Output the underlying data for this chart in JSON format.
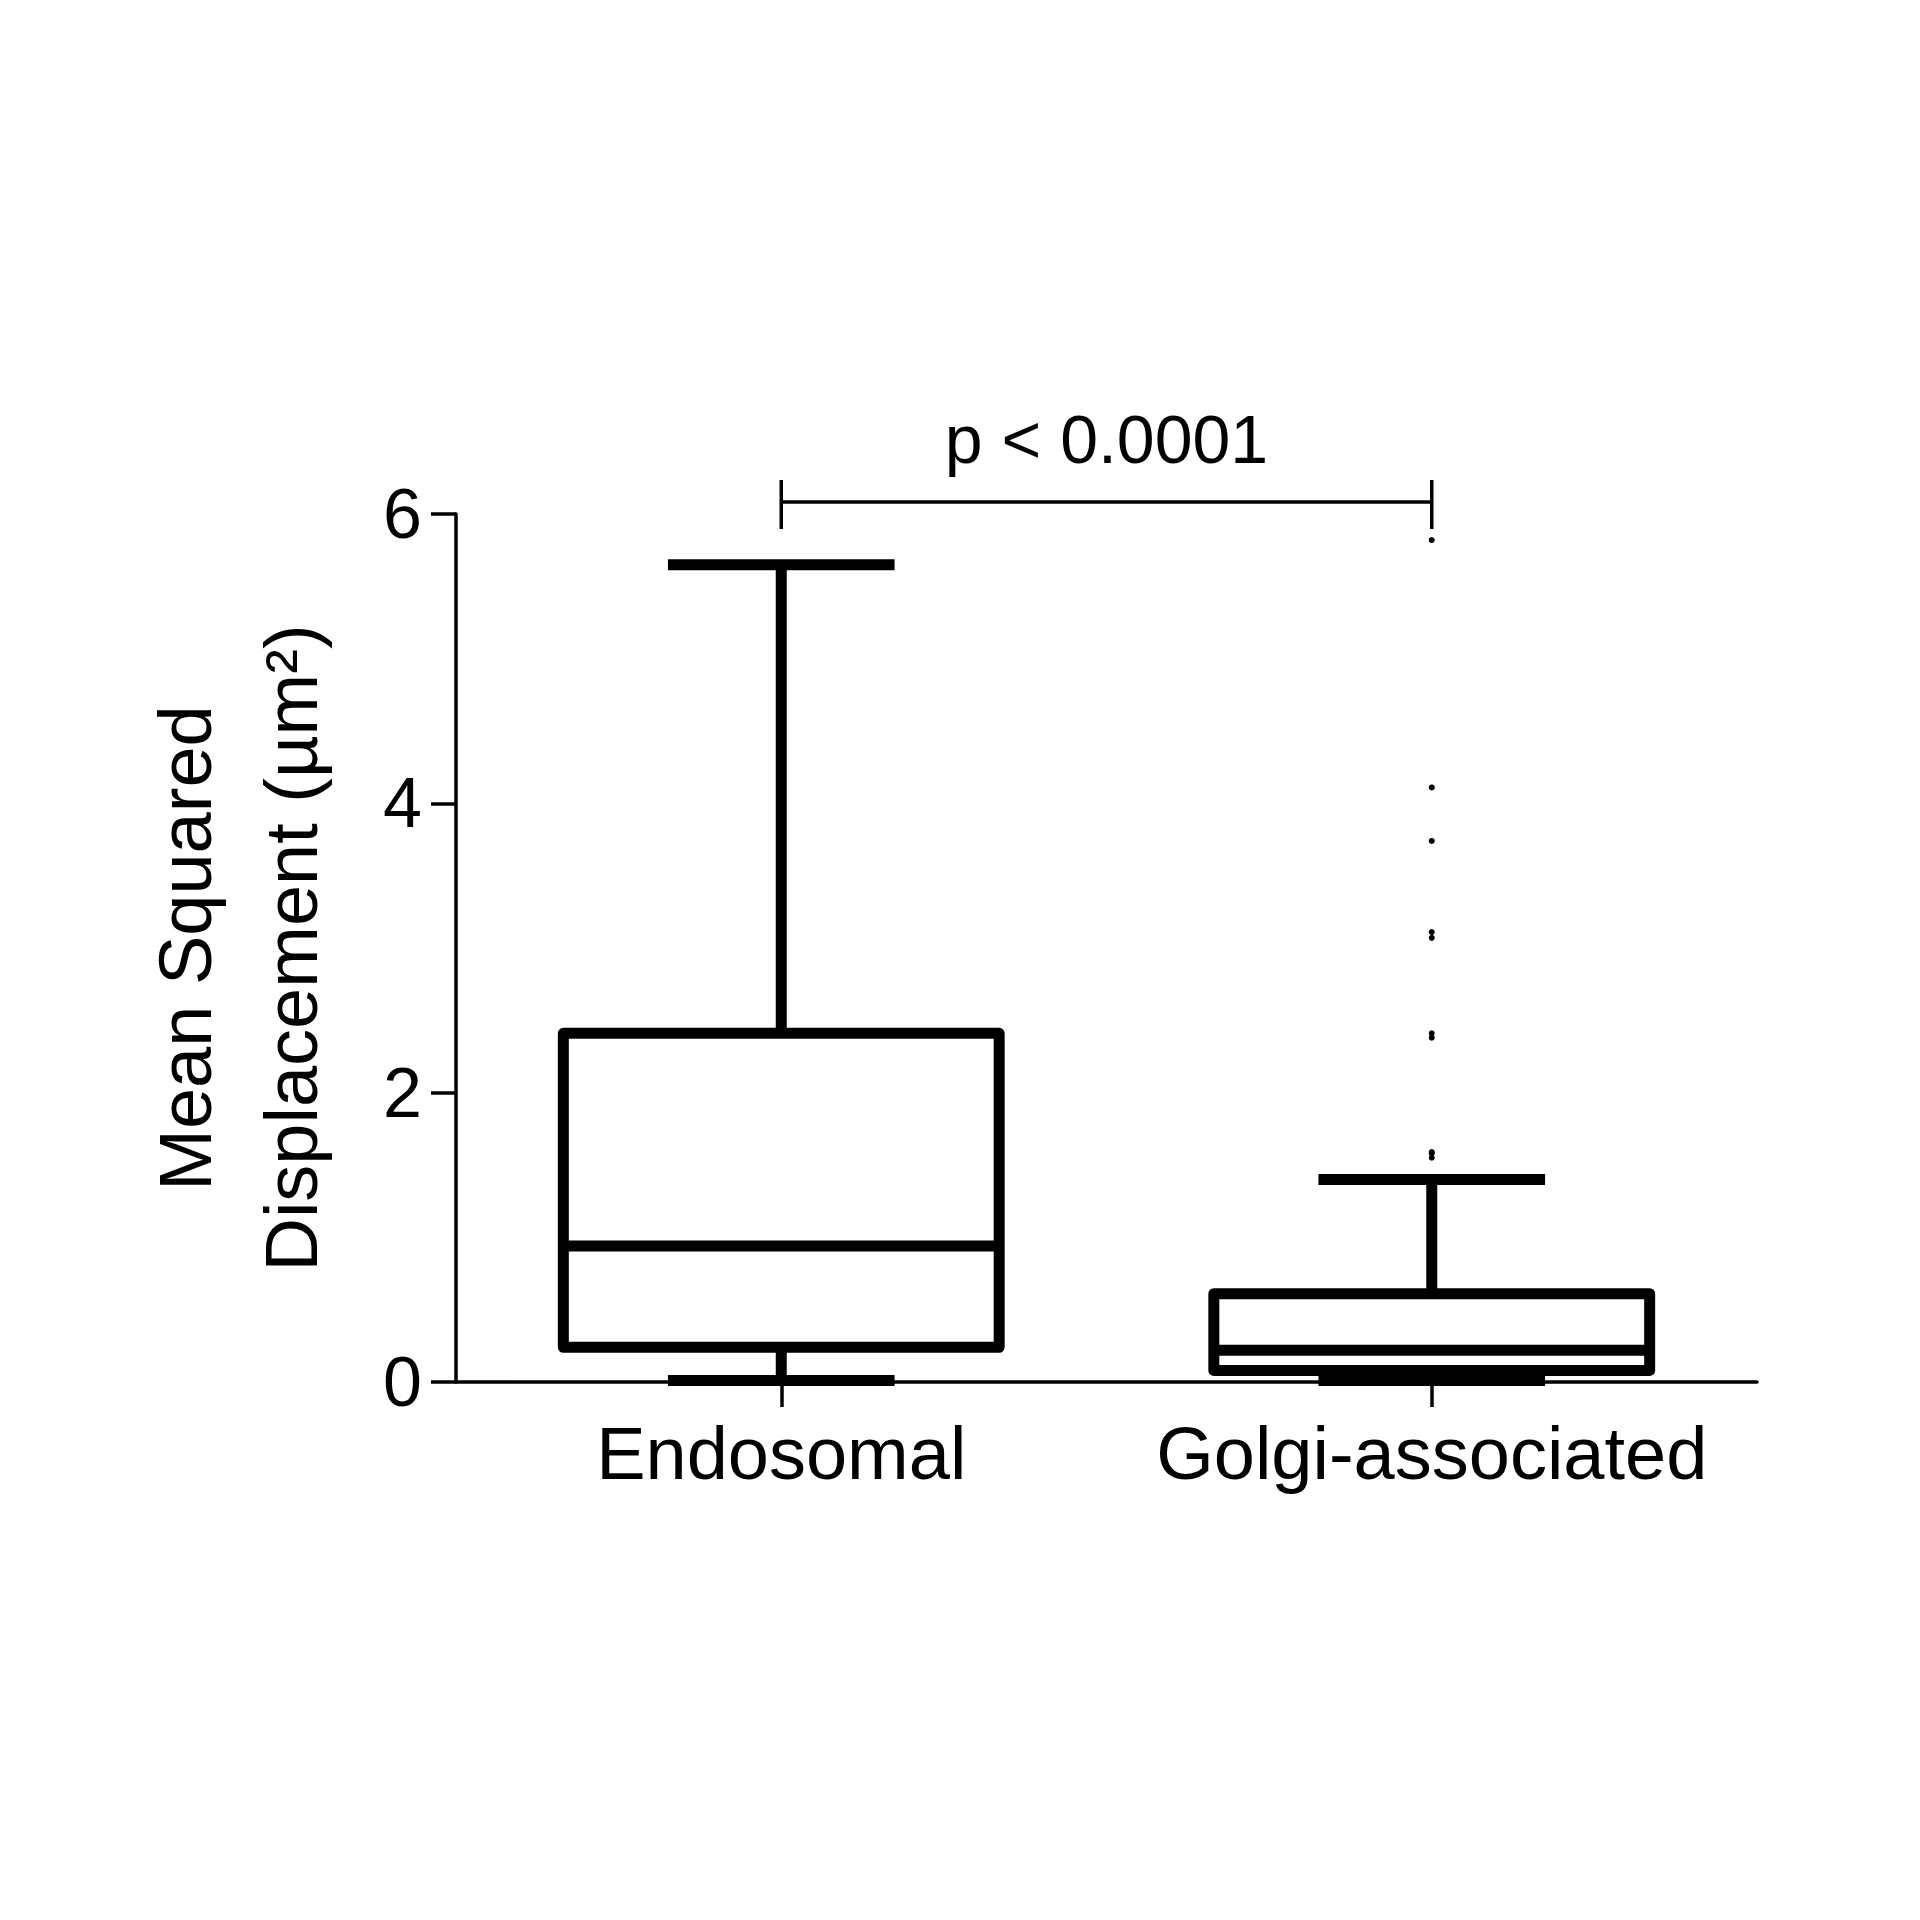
{
  "chart_data": {
    "type": "box",
    "ylabel": "Mean Squared Displacement (µm²)",
    "categories": [
      "Endosomal",
      "Golgi-associated"
    ],
    "boxes": [
      {
        "low": 0.01,
        "q1": 0.24,
        "median": 0.94,
        "q3": 2.41,
        "high": 5.65
      },
      {
        "low": 0.01,
        "q1": 0.08,
        "median": 0.22,
        "q3": 0.61,
        "high": 1.4,
        "outliers": [
          5.82,
          4.11,
          3.74,
          3.11,
          3.07,
          2.41,
          2.38,
          1.59,
          1.55,
          1.58
        ]
      }
    ],
    "color": "#000000",
    "ylim": [
      0,
      6
    ],
    "yticks": [
      0,
      2,
      4,
      6
    ],
    "annotations": [
      "p < 0.0001"
    ]
  }
}
